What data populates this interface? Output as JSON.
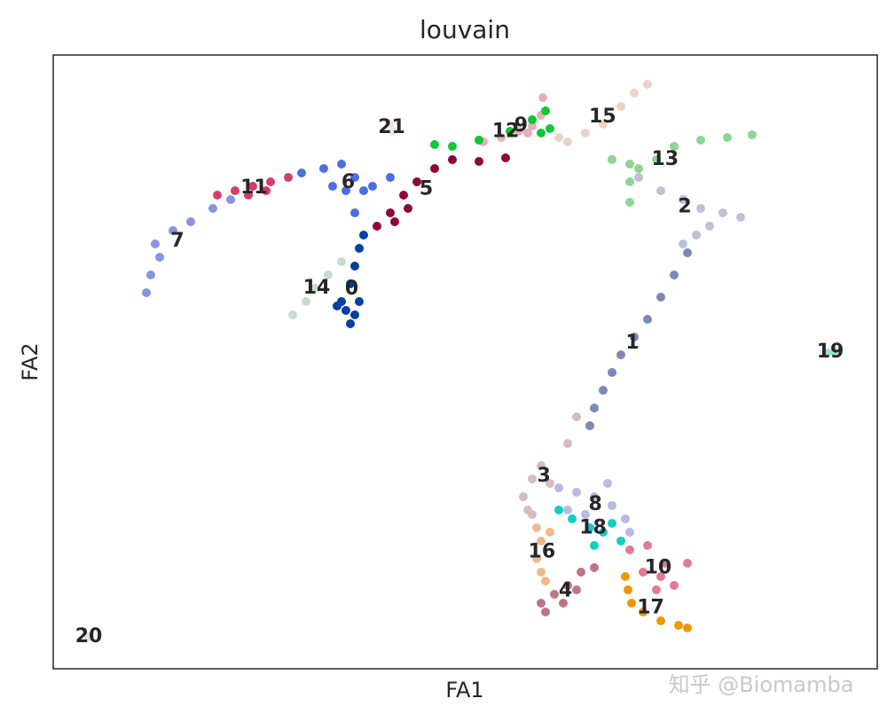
{
  "chart_data": {
    "type": "scatter",
    "title": "louvain",
    "x_label": "FA1",
    "y_label": "FA2",
    "watermark": "知乎 @Biomamba",
    "xlim": [
      0,
      929
    ],
    "ylim": [
      0,
      692
    ],
    "legend": "on data",
    "series": [
      {
        "name": "0",
        "color": "#023fa5",
        "x": [
          330,
          340,
          325,
          345,
          335,
          340,
          345,
          350,
          320,
          335
        ],
        "y": [
          404,
          399,
          414,
          414,
          434,
          454,
          474,
          489,
          409,
          389
        ]
      },
      {
        "name": "1",
        "color": "#7d87b9",
        "x": [
          610,
          620,
          630,
          640,
          655,
          670,
          685,
          700,
          715,
          605
        ],
        "y": [
          294,
          314,
          334,
          354,
          374,
          394,
          419,
          444,
          469,
          274
        ]
      },
      {
        "name": "2",
        "color": "#bec1d4",
        "x": [
          630,
          660,
          685,
          710,
          730,
          755,
          775,
          740,
          725,
          710
        ],
        "y": [
          574,
          554,
          539,
          529,
          519,
          514,
          509,
          499,
          489,
          479
        ]
      },
      {
        "name": "3",
        "color": "#d6bcc0",
        "x": [
          540,
          550,
          530,
          540,
          560,
          580,
          590,
          535
        ],
        "y": [
          214,
          229,
          194,
          174,
          209,
          254,
          284,
          179
        ]
      },
      {
        "name": "4",
        "color": "#bb7784",
        "x": [
          555,
          565,
          580,
          595,
          610,
          575,
          590,
          550
        ],
        "y": [
          64,
          84,
          94,
          109,
          114,
          74,
          89,
          74
        ]
      },
      {
        "name": "5",
        "color": "#8e063b",
        "x": [
          365,
          380,
          395,
          410,
          430,
          450,
          480,
          510,
          385,
          400
        ],
        "y": [
          499,
          514,
          534,
          549,
          564,
          574,
          572,
          576,
          504,
          519
        ]
      },
      {
        "name": "6",
        "color": "#4a6fe3",
        "x": [
          280,
          305,
          325,
          340,
          350,
          330,
          360,
          340,
          315,
          380
        ],
        "y": [
          559,
          564,
          569,
          554,
          539,
          539,
          544,
          514,
          544,
          554
        ]
      },
      {
        "name": "7",
        "color": "#8595e1",
        "x": [
          105,
          110,
          120,
          115,
          135,
          155,
          180,
          200
        ],
        "y": [
          424,
          444,
          464,
          479,
          494,
          504,
          519,
          529
        ]
      },
      {
        "name": "8",
        "color": "#b5bbe3",
        "x": [
          570,
          590,
          610,
          630,
          645,
          625,
          600,
          650,
          580
        ],
        "y": [
          204,
          199,
          194,
          184,
          169,
          209,
          174,
          154,
          179
        ]
      },
      {
        "name": "9",
        "color": "#e6afb9",
        "x": [
          485,
          505,
          525,
          540,
          550,
          552,
          535
        ],
        "y": [
          594,
          599,
          606,
          612,
          624,
          644,
          604
        ]
      },
      {
        "name": "10",
        "color": "#e07b91",
        "x": [
          650,
          670,
          690,
          715,
          700,
          680,
          665,
          685
        ],
        "y": [
          134,
          139,
          119,
          119,
          94,
          89,
          109,
          104
        ]
      },
      {
        "name": "11",
        "color": "#d33f6a",
        "x": [
          185,
          205,
          225,
          245,
          265,
          220,
          240
        ],
        "y": [
          534,
          539,
          544,
          549,
          554,
          534,
          539
        ]
      },
      {
        "name": "12",
        "color": "#11c638",
        "x": [
          430,
          450,
          480,
          515,
          540,
          555,
          560,
          550
        ],
        "y": [
          591,
          589,
          596,
          606,
          619,
          629,
          609,
          604
        ]
      },
      {
        "name": "13",
        "color": "#8dd593",
        "x": [
          630,
          650,
          660,
          680,
          700,
          730,
          760,
          788,
          650,
          650
        ],
        "y": [
          574,
          569,
          564,
          574,
          589,
          596,
          599,
          602,
          549,
          526
        ]
      },
      {
        "name": "14",
        "color": "#c6dec7",
        "x": [
          270,
          285,
          295,
          310,
          325
        ],
        "y": [
          399,
          414,
          429,
          444,
          459
        ]
      },
      {
        "name": "15",
        "color": "#ead3c6",
        "x": [
          580,
          600,
          620,
          640,
          655,
          670,
          570
        ],
        "y": [
          594,
          604,
          614,
          634,
          649,
          659,
          599
        ]
      },
      {
        "name": "16",
        "color": "#f0b98d",
        "x": [
          545,
          550,
          545,
          550,
          555,
          560
        ],
        "y": [
          159,
          144,
          124,
          109,
          99,
          154
        ]
      },
      {
        "name": "17",
        "color": "#ef9708",
        "x": [
          645,
          648,
          652,
          665,
          685,
          705,
          715
        ],
        "y": [
          104,
          89,
          74,
          64,
          54,
          49,
          46
        ]
      },
      {
        "name": "18",
        "color": "#0fcfc0",
        "x": [
          570,
          585,
          605,
          620,
          610,
          640,
          630
        ],
        "y": [
          179,
          169,
          159,
          154,
          139,
          144,
          164
        ]
      },
      {
        "name": "19",
        "color": "#9cded6",
        "x": [
          872,
          880
        ],
        "y": [
          356,
          358
        ]
      },
      {
        "name": "20",
        "color": "#d5eae7",
        "x": [
          40
        ],
        "y": [
          36
        ]
      },
      {
        "name": "21",
        "color": "#f3e1eb",
        "x": [
          380,
          383
        ],
        "y": [
          614,
          606
        ]
      }
    ]
  }
}
